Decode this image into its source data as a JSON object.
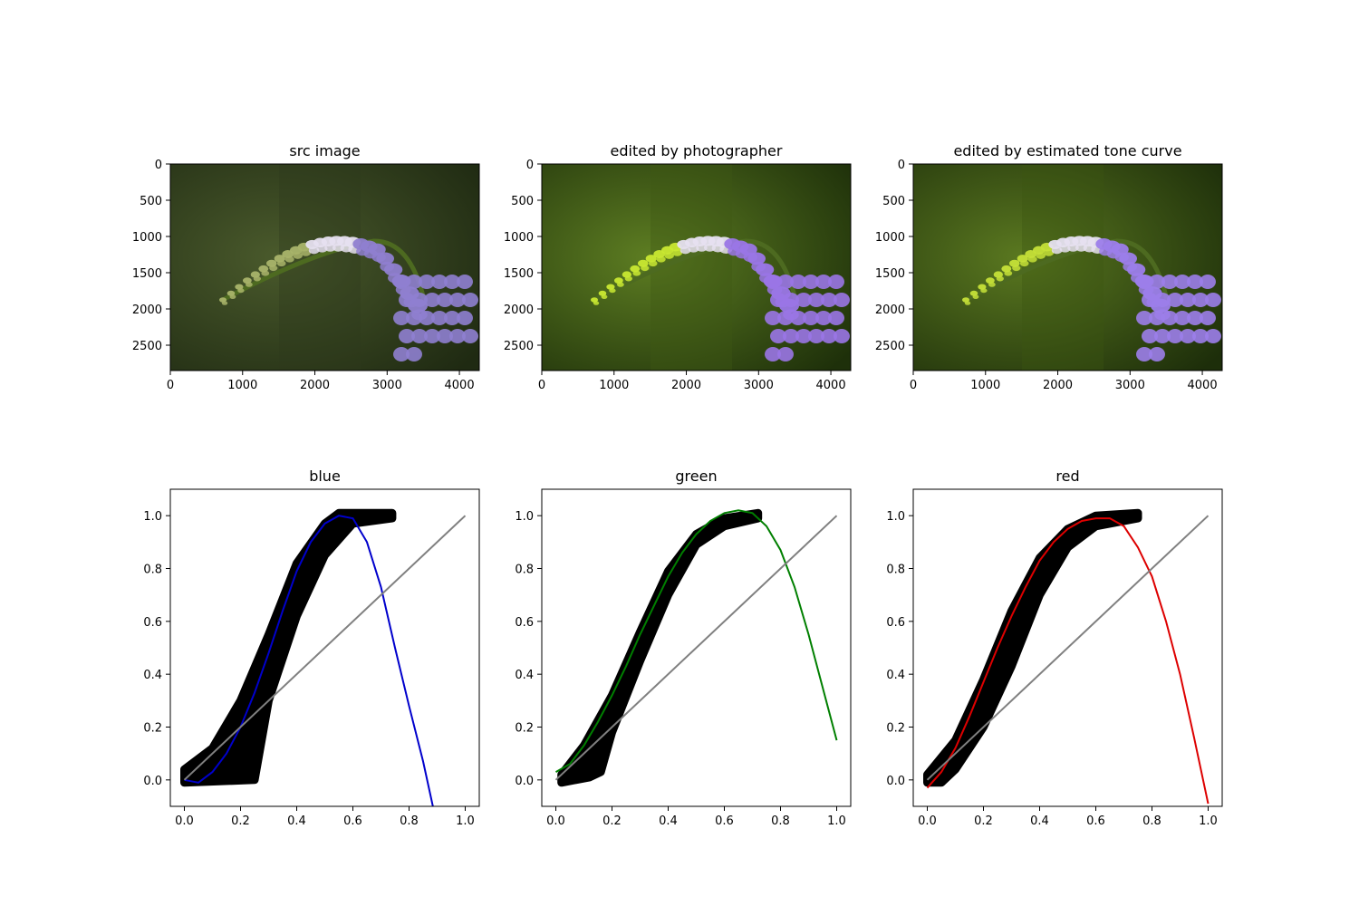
{
  "image_panels": [
    {
      "title": "src image",
      "x_ticks": [
        "0",
        "1000",
        "2000",
        "3000",
        "4000"
      ],
      "y_ticks": [
        "0",
        "500",
        "1000",
        "1500",
        "2000",
        "2500"
      ],
      "content": "flower photograph (unedited)",
      "colors": {
        "background": "#2f3a1d",
        "stem_tip": "#a9b46a",
        "petals": "#8f7fd0"
      }
    },
    {
      "title": "edited by photographer",
      "x_ticks": [
        "0",
        "1000",
        "2000",
        "3000",
        "4000"
      ],
      "y_ticks": [
        "0",
        "500",
        "1000",
        "1500",
        "2000",
        "2500"
      ],
      "content": "flower photograph (photographer edit)",
      "colors": {
        "background": "#3e5a14",
        "stem_tip": "#c9e832",
        "petals": "#9a76e6"
      }
    },
    {
      "title": "edited by estimated tone curve",
      "x_ticks": [
        "0",
        "1000",
        "2000",
        "3000",
        "4000"
      ],
      "y_ticks": [
        "0",
        "500",
        "1000",
        "1500",
        "2000",
        "2500"
      ],
      "content": "flower photograph (tone-curve edit)",
      "colors": {
        "background": "#3d5512",
        "stem_tip": "#c5e038",
        "petals": "#9c7eea"
      }
    }
  ],
  "chart_data": [
    {
      "type": "scatter",
      "title": "blue",
      "xlabel": "",
      "ylabel": "",
      "xlim": [
        -0.05,
        1.05
      ],
      "ylim": [
        -0.1,
        1.1
      ],
      "x_ticks": [
        "0.0",
        "0.2",
        "0.4",
        "0.6",
        "0.8",
        "1.0"
      ],
      "y_ticks": [
        "0.0",
        "0.2",
        "0.4",
        "0.6",
        "0.8",
        "1.0"
      ],
      "grid": false,
      "scatter_band": {
        "color": "#000000",
        "upper": [
          [
            0.0,
            0.04
          ],
          [
            0.1,
            0.12
          ],
          [
            0.2,
            0.3
          ],
          [
            0.3,
            0.55
          ],
          [
            0.4,
            0.82
          ],
          [
            0.5,
            0.97
          ],
          [
            0.55,
            1.01
          ],
          [
            0.74,
            1.01
          ]
        ],
        "lower": [
          [
            0.74,
            0.99
          ],
          [
            0.6,
            0.97
          ],
          [
            0.5,
            0.85
          ],
          [
            0.4,
            0.62
          ],
          [
            0.3,
            0.3
          ],
          [
            0.27,
            0.12
          ],
          [
            0.25,
            0.0
          ],
          [
            0.0,
            -0.01
          ]
        ]
      },
      "series": [
        {
          "kind": "curve",
          "color": "#0000cc",
          "points": [
            [
              0.0,
              0.0
            ],
            [
              0.05,
              -0.01
            ],
            [
              0.1,
              0.03
            ],
            [
              0.15,
              0.1
            ],
            [
              0.2,
              0.2
            ],
            [
              0.25,
              0.33
            ],
            [
              0.3,
              0.48
            ],
            [
              0.35,
              0.64
            ],
            [
              0.4,
              0.79
            ],
            [
              0.45,
              0.9
            ],
            [
              0.5,
              0.97
            ],
            [
              0.55,
              1.0
            ],
            [
              0.6,
              0.99
            ],
            [
              0.65,
              0.9
            ],
            [
              0.7,
              0.73
            ],
            [
              0.75,
              0.5
            ],
            [
              0.8,
              0.28
            ],
            [
              0.85,
              0.07
            ],
            [
              0.885,
              -0.1
            ]
          ]
        },
        {
          "kind": "identity",
          "color": "#808080",
          "points": [
            [
              0.0,
              0.0
            ],
            [
              1.0,
              1.0
            ]
          ]
        }
      ]
    },
    {
      "type": "scatter",
      "title": "green",
      "xlabel": "",
      "ylabel": "",
      "xlim": [
        -0.05,
        1.05
      ],
      "ylim": [
        -0.1,
        1.1
      ],
      "x_ticks": [
        "0.0",
        "0.2",
        "0.4",
        "0.6",
        "0.8",
        "1.0"
      ],
      "y_ticks": [
        "0.0",
        "0.2",
        "0.4",
        "0.6",
        "0.8",
        "1.0"
      ],
      "grid": false,
      "scatter_band": {
        "color": "#000000",
        "upper": [
          [
            0.02,
            0.02
          ],
          [
            0.1,
            0.13
          ],
          [
            0.2,
            0.32
          ],
          [
            0.3,
            0.56
          ],
          [
            0.4,
            0.79
          ],
          [
            0.5,
            0.93
          ],
          [
            0.6,
            0.99
          ],
          [
            0.72,
            1.01
          ]
        ],
        "lower": [
          [
            0.72,
            0.99
          ],
          [
            0.6,
            0.96
          ],
          [
            0.5,
            0.89
          ],
          [
            0.4,
            0.7
          ],
          [
            0.3,
            0.45
          ],
          [
            0.2,
            0.18
          ],
          [
            0.16,
            0.03
          ],
          [
            0.12,
            0.01
          ],
          [
            0.02,
            -0.01
          ]
        ]
      },
      "series": [
        {
          "kind": "curve",
          "color": "#007f00",
          "points": [
            [
              0.0,
              0.03
            ],
            [
              0.05,
              0.06
            ],
            [
              0.1,
              0.13
            ],
            [
              0.15,
              0.22
            ],
            [
              0.2,
              0.32
            ],
            [
              0.25,
              0.43
            ],
            [
              0.3,
              0.55
            ],
            [
              0.35,
              0.66
            ],
            [
              0.4,
              0.77
            ],
            [
              0.45,
              0.86
            ],
            [
              0.5,
              0.93
            ],
            [
              0.55,
              0.98
            ],
            [
              0.6,
              1.01
            ],
            [
              0.65,
              1.02
            ],
            [
              0.7,
              1.01
            ],
            [
              0.75,
              0.96
            ],
            [
              0.8,
              0.87
            ],
            [
              0.85,
              0.73
            ],
            [
              0.9,
              0.55
            ],
            [
              0.95,
              0.35
            ],
            [
              1.0,
              0.15
            ]
          ]
        },
        {
          "kind": "identity",
          "color": "#808080",
          "points": [
            [
              0.0,
              0.0
            ],
            [
              1.0,
              1.0
            ]
          ]
        }
      ]
    },
    {
      "type": "scatter",
      "title": "red",
      "xlabel": "",
      "ylabel": "",
      "xlim": [
        -0.05,
        1.05
      ],
      "ylim": [
        -0.1,
        1.1
      ],
      "x_ticks": [
        "0.0",
        "0.2",
        "0.4",
        "0.6",
        "0.8",
        "1.0"
      ],
      "y_ticks": [
        "0.0",
        "0.2",
        "0.4",
        "0.6",
        "0.8",
        "1.0"
      ],
      "grid": false,
      "scatter_band": {
        "color": "#000000",
        "upper": [
          [
            0.0,
            0.02
          ],
          [
            0.1,
            0.15
          ],
          [
            0.2,
            0.38
          ],
          [
            0.3,
            0.64
          ],
          [
            0.4,
            0.84
          ],
          [
            0.5,
            0.95
          ],
          [
            0.6,
            1.0
          ],
          [
            0.75,
            1.01
          ]
        ],
        "lower": [
          [
            0.75,
            0.99
          ],
          [
            0.6,
            0.96
          ],
          [
            0.5,
            0.88
          ],
          [
            0.4,
            0.7
          ],
          [
            0.3,
            0.43
          ],
          [
            0.2,
            0.2
          ],
          [
            0.1,
            0.04
          ],
          [
            0.05,
            -0.01
          ],
          [
            0.0,
            -0.01
          ]
        ]
      },
      "series": [
        {
          "kind": "curve",
          "color": "#dd0000",
          "points": [
            [
              0.0,
              -0.03
            ],
            [
              0.05,
              0.03
            ],
            [
              0.1,
              0.12
            ],
            [
              0.15,
              0.24
            ],
            [
              0.2,
              0.37
            ],
            [
              0.25,
              0.5
            ],
            [
              0.3,
              0.62
            ],
            [
              0.35,
              0.73
            ],
            [
              0.4,
              0.83
            ],
            [
              0.45,
              0.9
            ],
            [
              0.5,
              0.95
            ],
            [
              0.55,
              0.98
            ],
            [
              0.6,
              0.99
            ],
            [
              0.65,
              0.99
            ],
            [
              0.7,
              0.96
            ],
            [
              0.75,
              0.88
            ],
            [
              0.8,
              0.77
            ],
            [
              0.85,
              0.6
            ],
            [
              0.9,
              0.4
            ],
            [
              0.95,
              0.16
            ],
            [
              1.0,
              -0.09
            ]
          ]
        },
        {
          "kind": "identity",
          "color": "#808080",
          "points": [
            [
              0.0,
              0.0
            ],
            [
              1.0,
              1.0
            ]
          ]
        }
      ]
    }
  ]
}
